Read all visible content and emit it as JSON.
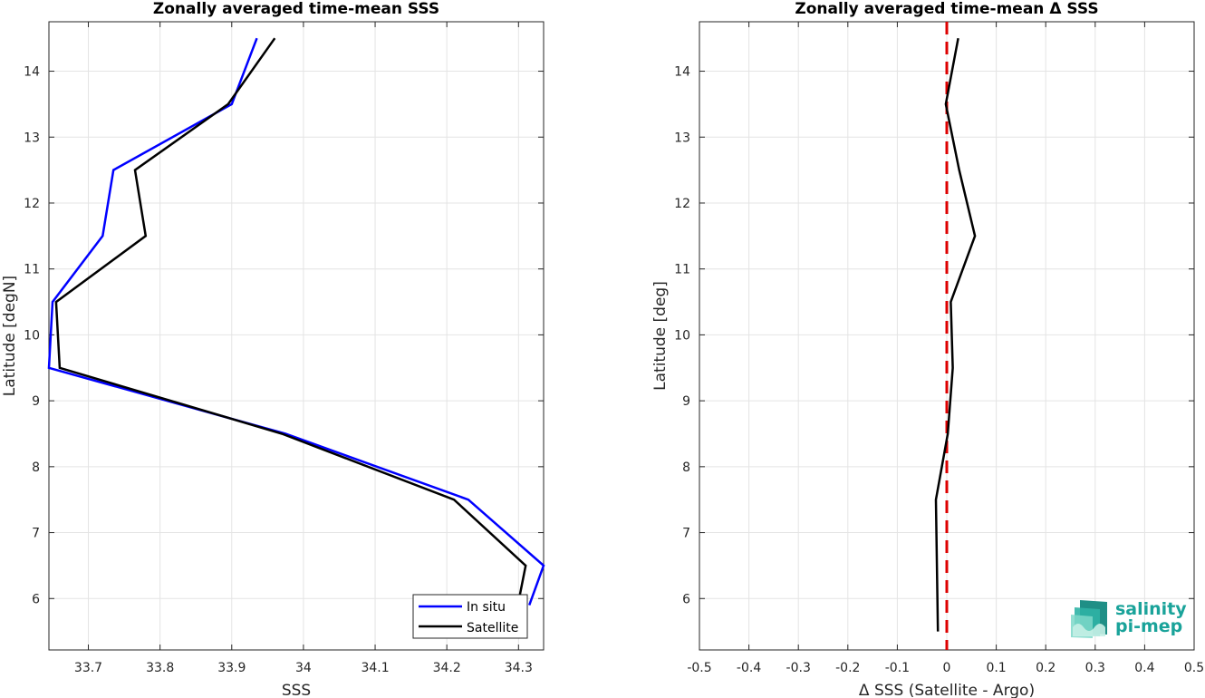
{
  "chart_data": [
    {
      "type": "line",
      "title": "Zonally averaged time-mean SSS",
      "xlabel": "SSS",
      "ylabel": "Latitude [degN]",
      "xlim": [
        33.645,
        34.335
      ],
      "ylim": [
        5.22,
        14.75
      ],
      "xticks": [
        33.7,
        33.8,
        33.9,
        34.0,
        34.1,
        34.2,
        34.3
      ],
      "xtick_labels": [
        "33.7",
        "33.8",
        "33.9",
        "34",
        "34.1",
        "34.2",
        "34.3"
      ],
      "yticks": [
        6,
        7,
        8,
        9,
        10,
        11,
        12,
        13,
        14
      ],
      "grid": true,
      "legend": "bottom-right",
      "series": [
        {
          "name": "In situ",
          "color": "#0000ff",
          "points": [
            [
              34.315,
              5.9
            ],
            [
              34.335,
              6.5
            ],
            [
              34.23,
              7.5
            ],
            [
              33.975,
              8.5
            ],
            [
              33.645,
              9.5
            ],
            [
              33.65,
              10.5
            ],
            [
              33.72,
              11.5
            ],
            [
              33.735,
              12.5
            ],
            [
              33.9,
              13.5
            ],
            [
              33.935,
              14.5
            ]
          ]
        },
        {
          "name": "Satellite",
          "color": "#000000",
          "points": [
            [
              34.3,
              5.95
            ],
            [
              34.31,
              6.5
            ],
            [
              34.21,
              7.5
            ],
            [
              33.97,
              8.5
            ],
            [
              33.66,
              9.5
            ],
            [
              33.655,
              10.5
            ],
            [
              33.78,
              11.5
            ],
            [
              33.765,
              12.5
            ],
            [
              33.895,
              13.5
            ],
            [
              33.96,
              14.5
            ]
          ]
        }
      ]
    },
    {
      "type": "line",
      "title": "Zonally averaged time-mean Δ SSS",
      "xlabel": "Δ SSS (Satellite - Argo)",
      "ylabel": "Latitude [deg]",
      "xlim": [
        -0.5,
        0.5
      ],
      "ylim": [
        5.22,
        14.75
      ],
      "xticks": [
        -0.5,
        -0.4,
        -0.3,
        -0.2,
        -0.1,
        0,
        0.1,
        0.2,
        0.3,
        0.4,
        0.5
      ],
      "xtick_labels": [
        "-0.5",
        "-0.4",
        "-0.3",
        "-0.2",
        "-0.1",
        "0",
        "0.1",
        "0.2",
        "0.3",
        "0.4",
        "0.5"
      ],
      "yticks": [
        6,
        7,
        8,
        9,
        10,
        11,
        12,
        13,
        14
      ],
      "grid": true,
      "reference_line": {
        "x": 0,
        "color": "#dd0000",
        "style": "dashed"
      },
      "series": [
        {
          "color": "#000000",
          "points": [
            [
              -0.018,
              5.5
            ],
            [
              -0.02,
              6.5
            ],
            [
              -0.022,
              7.5
            ],
            [
              0.002,
              8.5
            ],
            [
              0.012,
              9.5
            ],
            [
              0.008,
              10.5
            ],
            [
              0.057,
              11.5
            ],
            [
              0.025,
              12.5
            ],
            [
              -0.002,
              13.5
            ],
            [
              0.023,
              14.5
            ]
          ]
        }
      ]
    }
  ],
  "logo": {
    "line1": "salinity",
    "line2": "pi-mep"
  }
}
